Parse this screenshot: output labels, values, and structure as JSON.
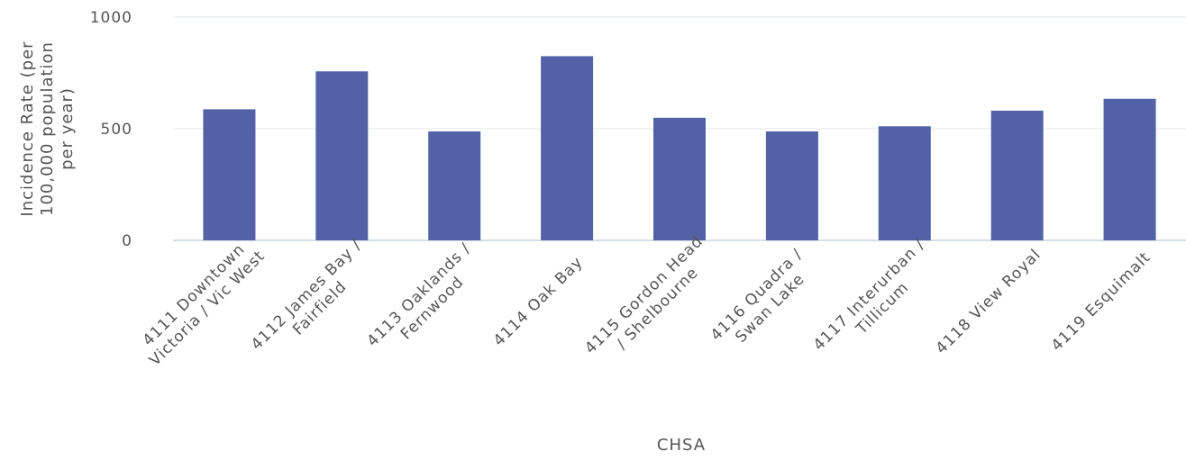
{
  "chart_data": {
    "type": "bar",
    "title": "",
    "xlabel": "CHSA",
    "ylabel_lines": [
      "Incidence Rate (per",
      "100,000 population",
      "per year)"
    ],
    "ylim": [
      0,
      1000
    ],
    "yticks": [
      0,
      500,
      1000
    ],
    "grid": true,
    "legend": "none",
    "bar_color": "#5362a6",
    "categories": [
      [
        "4111 Downtown",
        "Victoria / Vic West"
      ],
      [
        "4112 James Bay /",
        "Fairfield"
      ],
      [
        "4113 Oaklands /",
        "Fernwood"
      ],
      [
        "4114 Oak Bay"
      ],
      [
        "4115 Gordon Head",
        "/ Shelbourne"
      ],
      [
        "4116 Quadra /",
        "Swan Lake"
      ],
      [
        "4117 Interurban /",
        "Tillicum"
      ],
      [
        "4118 View Royal"
      ],
      [
        "4119 Esquimalt"
      ]
    ],
    "values": [
      587,
      757,
      488,
      825,
      549,
      488,
      511,
      581,
      634
    ]
  }
}
